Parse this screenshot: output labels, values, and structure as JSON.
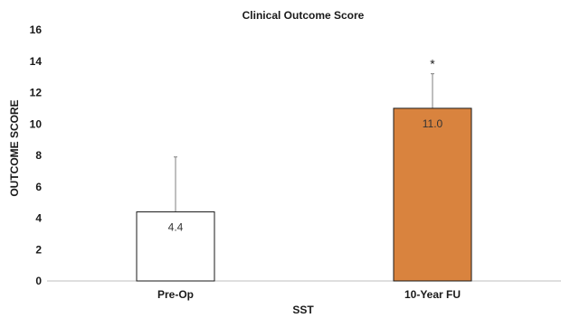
{
  "chart_data": {
    "type": "bar",
    "title": "Clinical Outcome Score",
    "xlabel": "SST",
    "ylabel": "OUTCOME SCORE",
    "categories": [
      "Pre-Op",
      "10-Year FU"
    ],
    "values": [
      4.4,
      11.0
    ],
    "value_labels": [
      "4.4",
      "11.0"
    ],
    "error_upper": [
      7.9,
      13.2
    ],
    "annotations": [
      "",
      "*"
    ],
    "ylim": [
      0,
      16
    ],
    "yticks": [
      0,
      2,
      4,
      6,
      8,
      10,
      12,
      14,
      16
    ],
    "grid": false,
    "colors": {
      "bar_fills": [
        "#ffffff",
        "#d9833e"
      ],
      "bar_edge": "#1a1a1a",
      "axis": "#bfbfbf",
      "error_bar": "#7f7f7f"
    }
  }
}
